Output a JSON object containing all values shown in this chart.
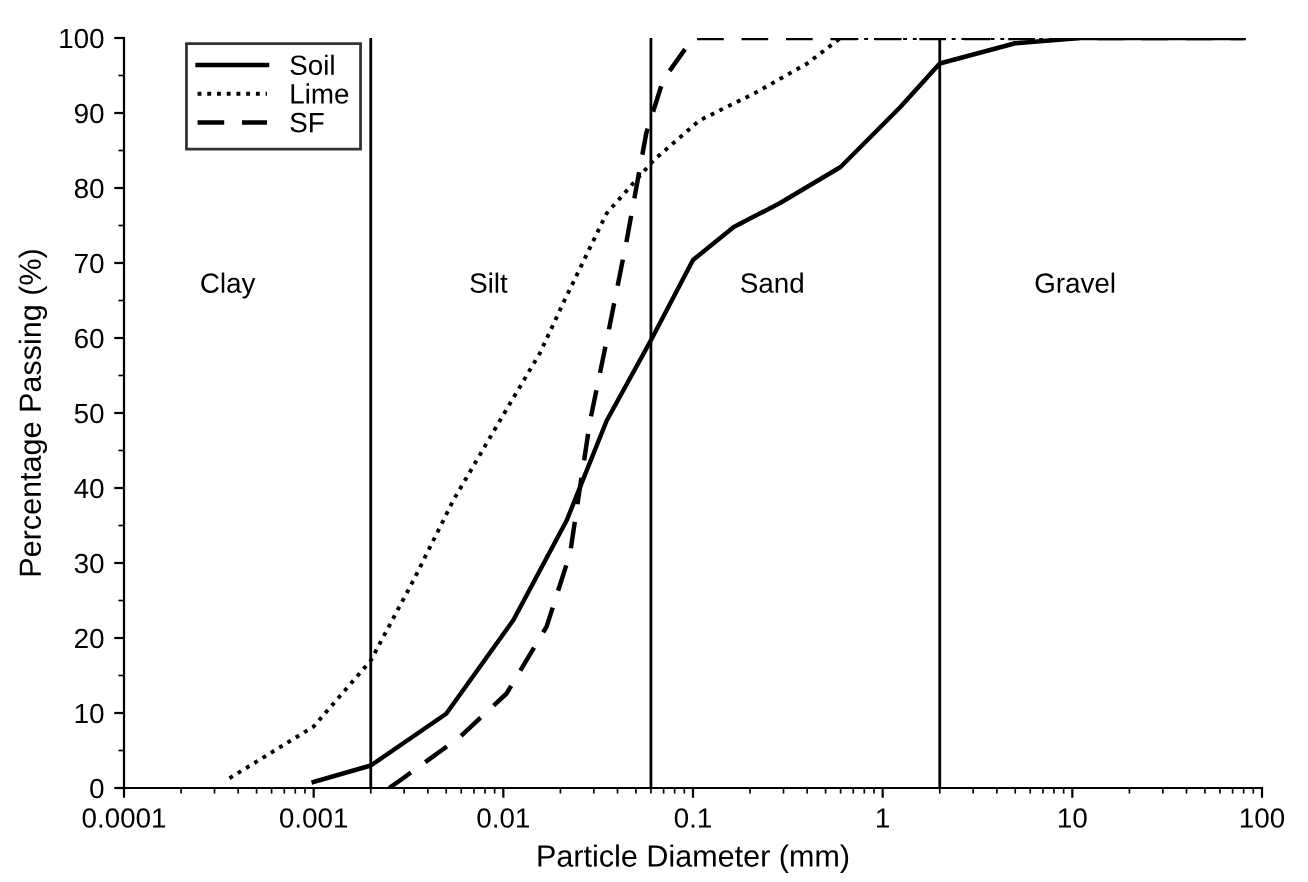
{
  "chart_data": {
    "type": "line",
    "xlabel": "Particle Diameter (mm)",
    "ylabel": "Percentage Passing (%)",
    "log": "x",
    "xlim": [
      0.0001,
      100
    ],
    "xticks": [
      0.0001,
      0.001,
      0.01,
      0.1,
      1,
      10,
      100
    ],
    "ylim": [
      0,
      100
    ],
    "yticks": [
      0,
      10,
      20,
      30,
      40,
      50,
      60,
      70,
      80,
      90,
      100
    ],
    "legend": "top left",
    "grid": false,
    "series": [
      {
        "name": "Soil",
        "color": "#000000",
        "line_style": "solid",
        "x": [
          0.001,
          0.002,
          0.005,
          0.0113,
          0.0216,
          0.0351,
          0.06,
          0.1,
          0.164,
          0.288,
          0.6,
          1.24,
          2,
          5,
          11,
          80
        ],
        "values": [
          0.8,
          3,
          9.9,
          22.4,
          35.7,
          49,
          59.7,
          70.4,
          74.8,
          78,
          82.8,
          90.8,
          96.6,
          99.3,
          100,
          100
        ]
      },
      {
        "name": "Lime",
        "color": "#000000",
        "line_style": "dotted",
        "x": [
          0.00036,
          0.001,
          0.002,
          0.00336,
          0.00546,
          0.0096,
          0.0156,
          0.021,
          0.035,
          0.062,
          0.108,
          0.21,
          0.4,
          0.6,
          80
        ],
        "values": [
          1.3,
          8.2,
          17,
          27.7,
          38.4,
          49,
          58,
          65,
          76.6,
          83.7,
          89,
          92.6,
          96.6,
          100,
          100
        ]
      },
      {
        "name": "SF",
        "color": "#000000",
        "line_style": "dashed",
        "x": [
          0.0025,
          0.00285,
          0.0059,
          0.0104,
          0.0169,
          0.0225,
          0.0254,
          0.0287,
          0.0351,
          0.0447,
          0.0567,
          0.0696,
          0.1,
          80
        ],
        "values": [
          0,
          1,
          6.8,
          12.6,
          21.5,
          31.3,
          40.2,
          49,
          59.7,
          73,
          87.3,
          94.4,
          100,
          100
        ]
      }
    ],
    "ref_lines": [
      {
        "axis": "x",
        "value": 0.002,
        "color": "#000000"
      },
      {
        "axis": "x",
        "value": 0.06,
        "color": "#000000"
      },
      {
        "axis": "x",
        "value": 2,
        "color": "#000000"
      }
    ],
    "annotations": [
      "Clay",
      "Silt",
      "Sand",
      "Gravel"
    ]
  }
}
